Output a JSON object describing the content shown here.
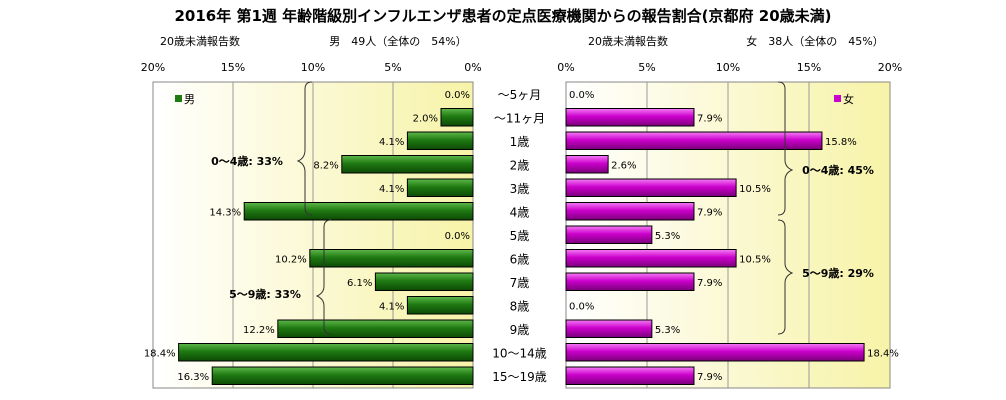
{
  "title": "2016年 第1週 年齢階級別インフルエンザ患者の定点医療機関からの報告割合(京都府 20歳未満)",
  "left_panel": {
    "header_label": "20歳未満報告数",
    "header_summary": "男　49人（全体の　54%）",
    "legend": "男",
    "bar_color": "#1F7A12",
    "group_labels": [
      "0～4歳: 33%",
      "5～9歳: 33%"
    ]
  },
  "right_panel": {
    "header_label": "20歳未満報告数",
    "header_summary": "女　38人（全体の　45%）",
    "legend": "女",
    "bar_color": "#CC00CC",
    "group_labels": [
      "0～4歳: 45%",
      "5～9歳: 29%"
    ]
  },
  "chart_data": {
    "type": "bar",
    "categories": [
      "～5ヶ月",
      "～11ヶ月",
      "1歳",
      "2歳",
      "3歳",
      "4歳",
      "5歳",
      "6歳",
      "7歳",
      "8歳",
      "9歳",
      "10～14歳",
      "15～19歳"
    ],
    "series": [
      {
        "name": "男",
        "values": [
          0.0,
          2.0,
          4.1,
          8.2,
          4.1,
          14.3,
          0.0,
          10.2,
          6.1,
          4.1,
          12.2,
          18.4,
          16.3
        ],
        "color": "#1F7A12"
      },
      {
        "name": "女",
        "values": [
          0.0,
          7.9,
          15.8,
          2.6,
          10.5,
          7.9,
          5.3,
          10.5,
          7.9,
          0.0,
          5.3,
          18.4,
          7.9
        ],
        "color": "#CC00CC"
      }
    ],
    "value_unit": "%",
    "xlim": [
      0,
      20
    ],
    "ticks": [
      "0%",
      "5%",
      "10%",
      "15%",
      "20%"
    ],
    "grid": true
  }
}
